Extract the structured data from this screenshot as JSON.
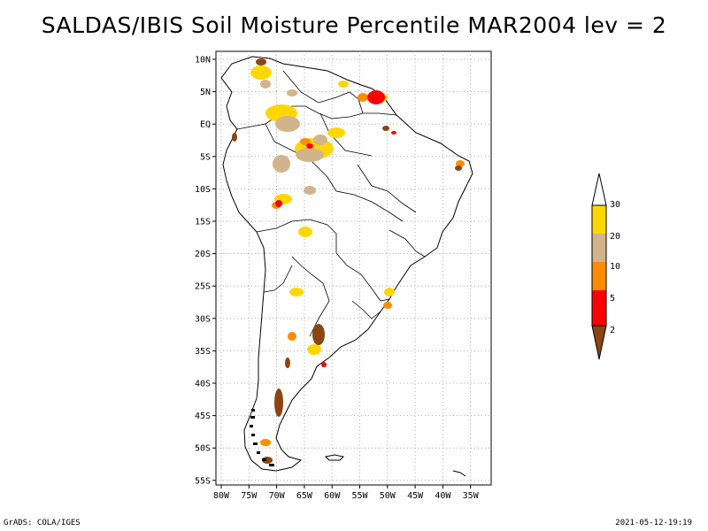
{
  "title": "SALDAS/IBIS Soil Moisture Percentile MAR2004 lev = 2",
  "lat_labels": [
    "10N",
    "5N",
    "EQ",
    "5S",
    "10S",
    "15S",
    "20S",
    "25S",
    "30S",
    "35S",
    "40S",
    "45S",
    "50S",
    "55S"
  ],
  "lon_labels": [
    "80W",
    "75W",
    "70W",
    "65W",
    "60W",
    "55W",
    "50W",
    "45W",
    "40W",
    "35W"
  ],
  "legend": {
    "labels": [
      "2",
      "5",
      "10",
      "20",
      "30"
    ],
    "colors": {
      "below_2": "#8b4513",
      "2_5": "#ff0000",
      "5_10": "#ff8c00",
      "10_20": "#d2b48c",
      "20_30": "#ffd700",
      "above_30": "#ffffff"
    }
  },
  "footer": {
    "left": "GrADS: COLA/IGES",
    "right": "2021-05-12-19:19"
  }
}
